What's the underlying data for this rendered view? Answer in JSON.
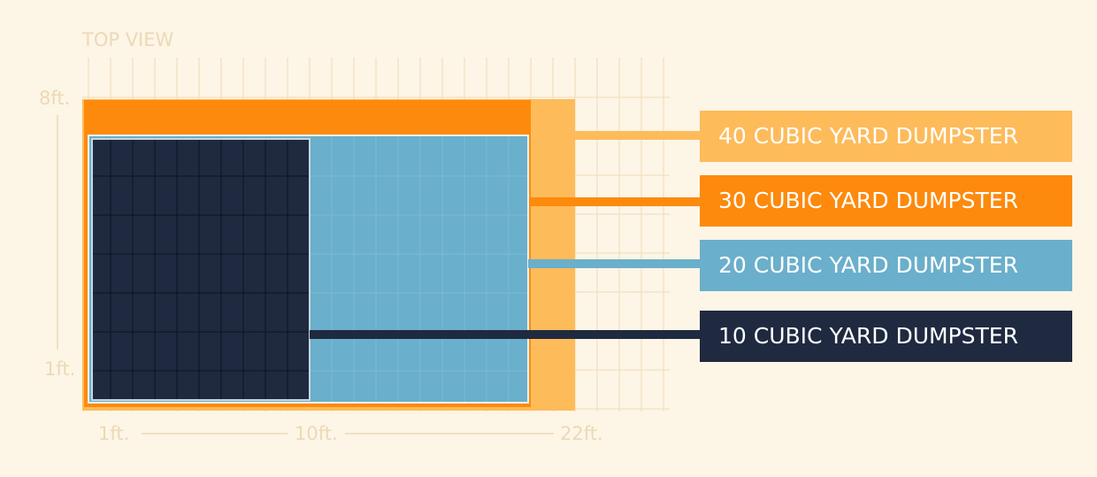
{
  "title": "TOP VIEW",
  "y_axis": {
    "top": "8ft.",
    "bottom": "1ft."
  },
  "x_axis": {
    "labels": [
      "1ft.",
      "10ft.",
      "22ft."
    ]
  },
  "legend": [
    "40 CUBIC YARD DUMPSTER",
    "30 CUBIC YARD DUMPSTER",
    "20 CUBIC YARD DUMPSTER",
    "10 CUBIC YARD DUMPSTER"
  ]
}
